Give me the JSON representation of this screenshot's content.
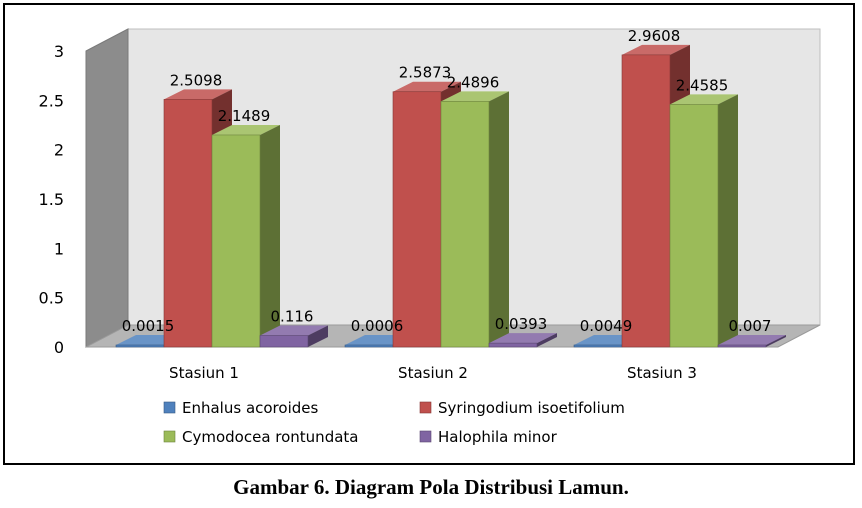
{
  "caption": "Gambar 6. Diagram Pola Distribusi Lamun.",
  "chart_data": {
    "type": "bar",
    "categories": [
      "Stasiun 1",
      "Stasiun 2",
      "Stasiun 3"
    ],
    "series": [
      {
        "name": "Enhalus acoroides",
        "values": [
          0.0015,
          0.0006,
          0.0049
        ],
        "labels": [
          "0.0015",
          "0.0006",
          "0.0049"
        ],
        "color": "#4f81bd"
      },
      {
        "name": "Syringodium isoetifolium",
        "values": [
          2.5098,
          2.5873,
          2.9608
        ],
        "labels": [
          "2.5098",
          "2.5873",
          "2.9608"
        ],
        "color": "#c0504d"
      },
      {
        "name": "Cymodocea rontundata",
        "values": [
          2.1489,
          2.4896,
          2.4585
        ],
        "labels": [
          "2.1489",
          "2.4896",
          "2.4585"
        ],
        "color": "#9bbb59"
      },
      {
        "name": "Halophila minor",
        "values": [
          0.116,
          0.0393,
          0.007
        ],
        "labels": [
          "0.116",
          "0.0393",
          "0.007"
        ],
        "color": "#8064a2"
      }
    ],
    "yticks": [
      "0",
      "0.5",
      "1",
      "1.5",
      "2",
      "2.5",
      "3"
    ],
    "ylim": [
      0,
      3
    ],
    "title": "",
    "xlabel": "",
    "ylabel": "",
    "grid": false,
    "style": "3d-clustered-column",
    "legend_position": "bottom"
  }
}
